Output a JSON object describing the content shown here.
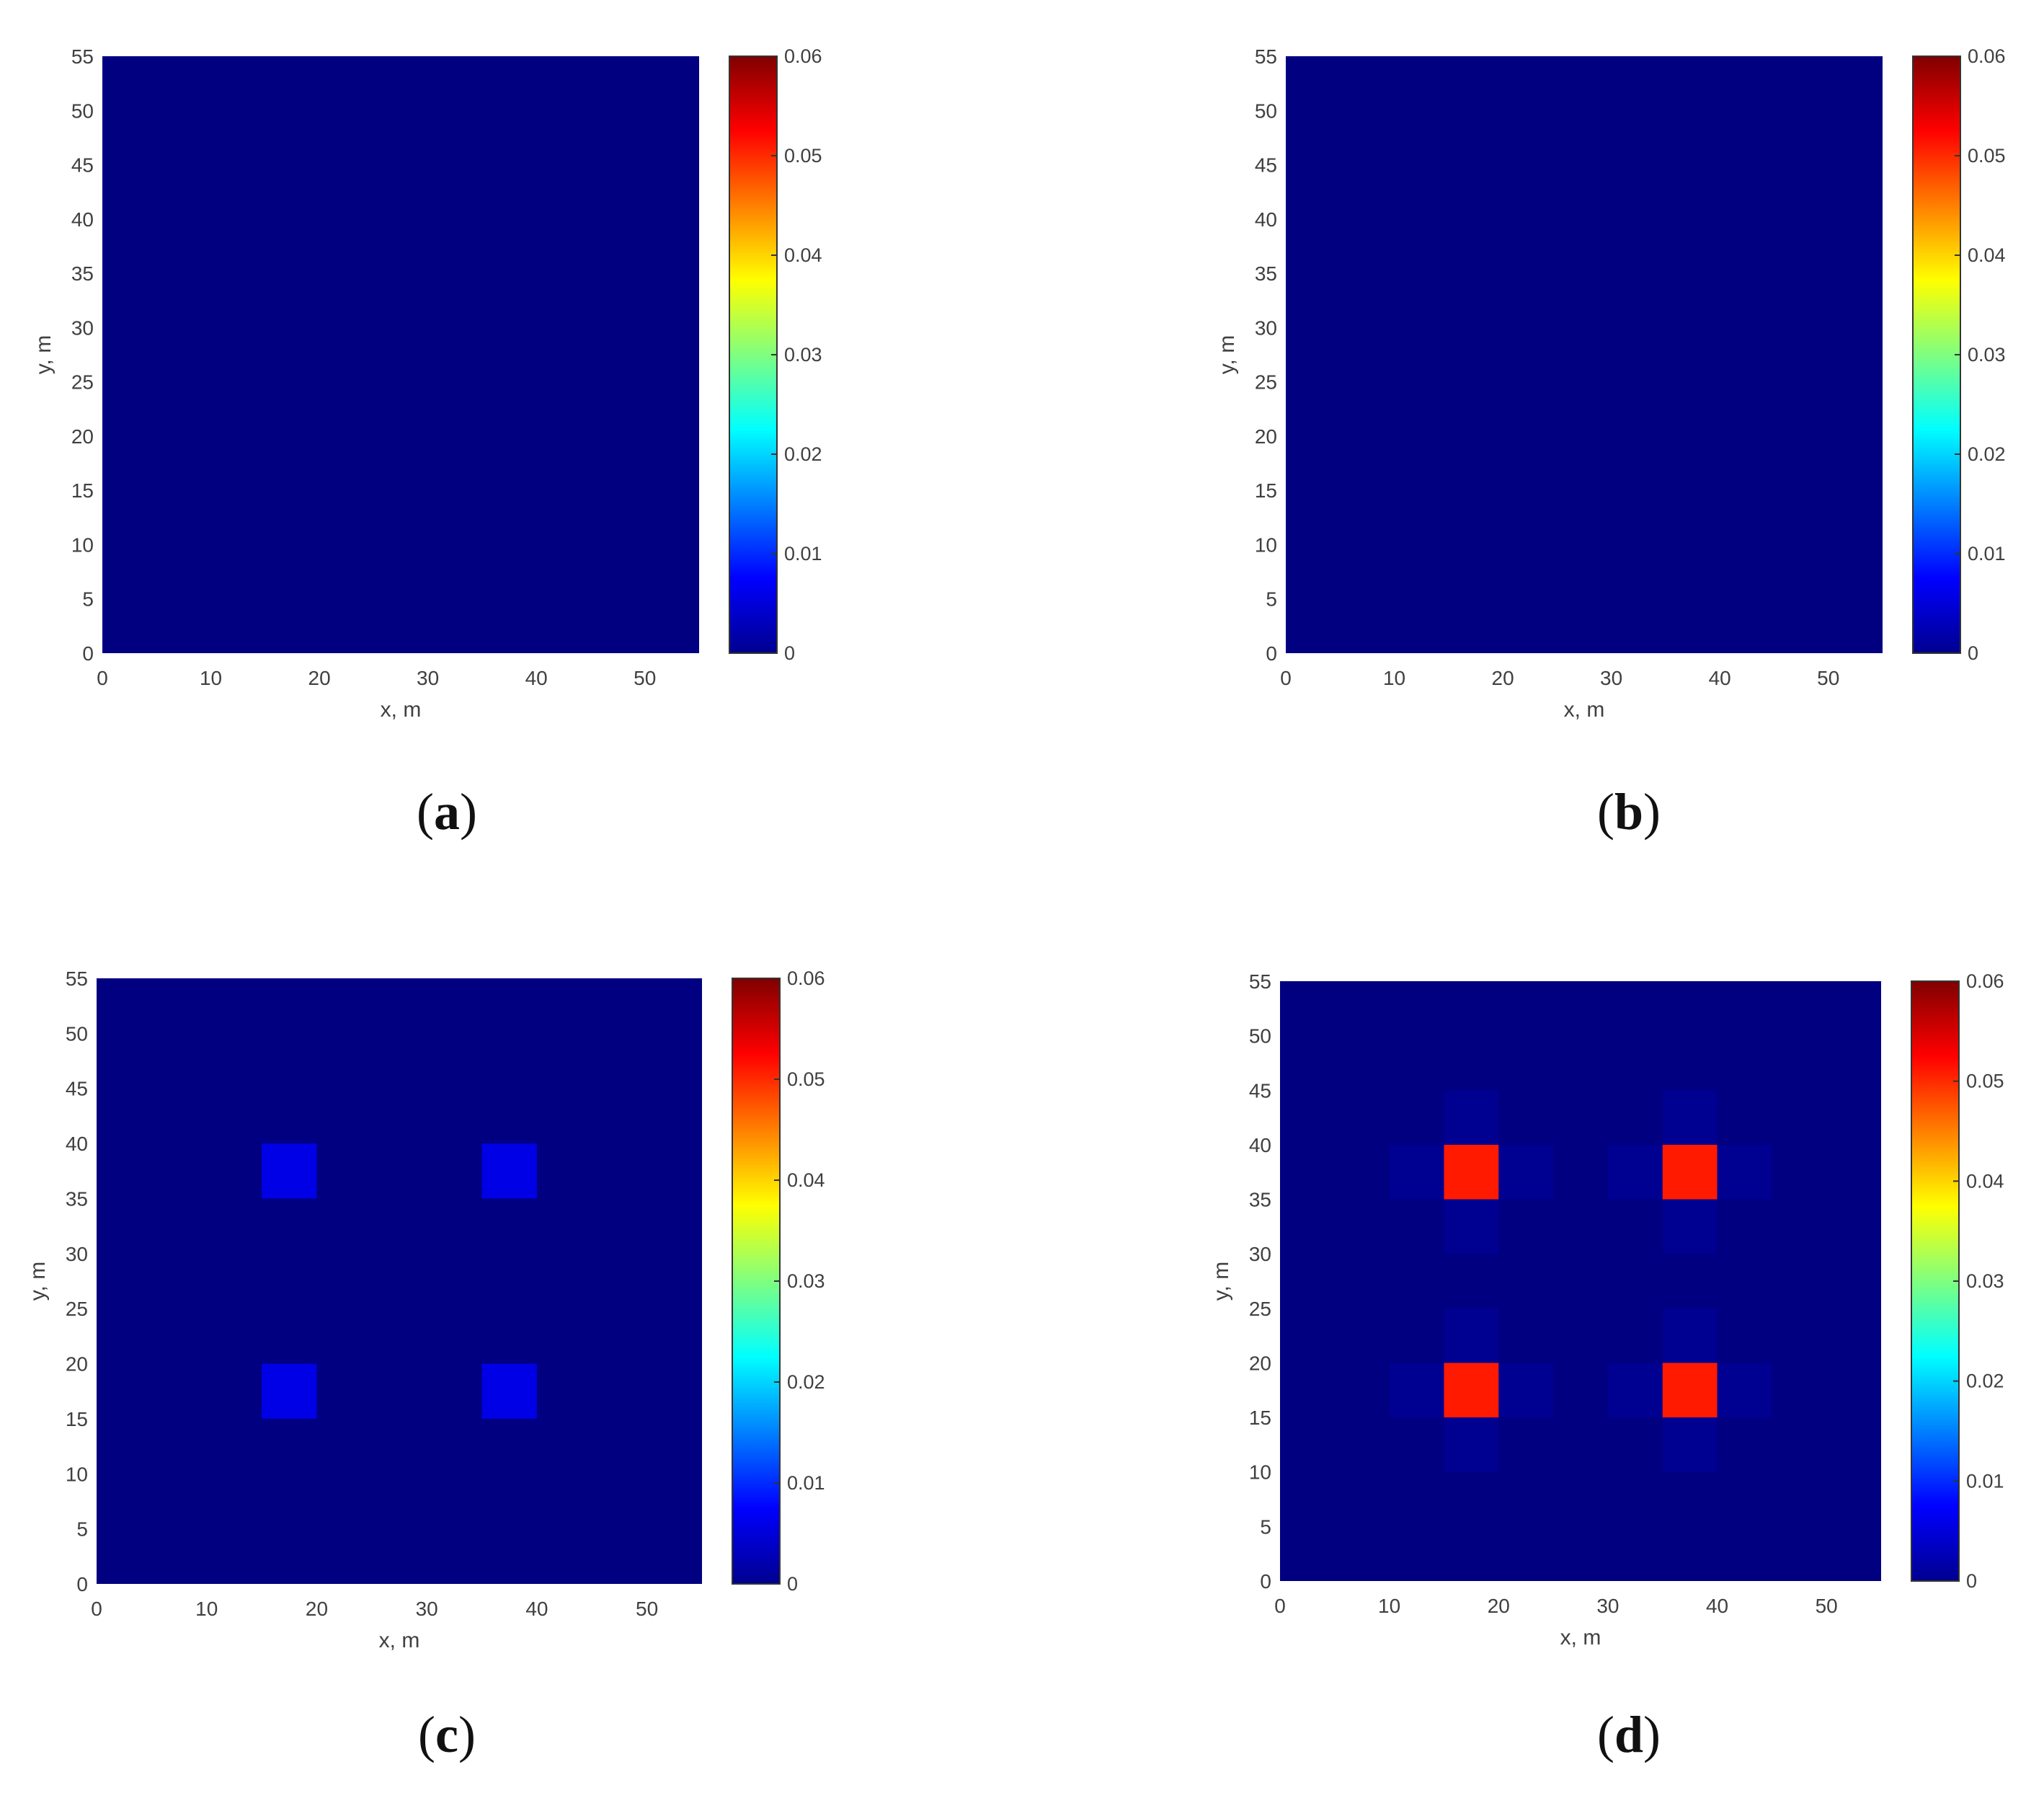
{
  "colors": {
    "text": "#404040",
    "axis": "#333333"
  },
  "colormap_name": "jet",
  "chart_data": [
    {
      "type": "heatmap",
      "panel_label": "a",
      "xlabel": "x, m",
      "ylabel": "y, m",
      "xlim": [
        0,
        55
      ],
      "ylim": [
        0,
        55
      ],
      "xticks": [
        "0",
        "10",
        "20",
        "30",
        "40",
        "50"
      ],
      "yticks": [
        "0",
        "5",
        "10",
        "15",
        "20",
        "25",
        "30",
        "35",
        "40",
        "45",
        "50",
        "55"
      ],
      "colorbar": {
        "range": [
          0,
          0.06
        ],
        "ticks": [
          "0",
          "0.01",
          "0.02",
          "0.03",
          "0.04",
          "0.05",
          "0.06"
        ]
      },
      "background_value": 0,
      "cells": []
    },
    {
      "type": "heatmap",
      "panel_label": "b",
      "xlabel": "x, m",
      "ylabel": "y, m",
      "xlim": [
        0,
        55
      ],
      "ylim": [
        0,
        55
      ],
      "xticks": [
        "0",
        "10",
        "20",
        "30",
        "40",
        "50"
      ],
      "yticks": [
        "0",
        "5",
        "10",
        "15",
        "20",
        "25",
        "30",
        "35",
        "40",
        "45",
        "50",
        "55"
      ],
      "colorbar": {
        "range": [
          0,
          0.06
        ],
        "ticks": [
          "0",
          "0.01",
          "0.02",
          "0.03",
          "0.04",
          "0.05",
          "0.06"
        ]
      },
      "background_value": 0,
      "cells": []
    },
    {
      "type": "heatmap",
      "panel_label": "c",
      "xlabel": "x, m",
      "ylabel": "y, m",
      "xlim": [
        0,
        55
      ],
      "ylim": [
        0,
        55
      ],
      "xticks": [
        "0",
        "10",
        "20",
        "30",
        "40",
        "50"
      ],
      "yticks": [
        "0",
        "5",
        "10",
        "15",
        "20",
        "25",
        "30",
        "35",
        "40",
        "45",
        "50",
        "55"
      ],
      "colorbar": {
        "range": [
          0,
          0.06
        ],
        "ticks": [
          "0",
          "0.01",
          "0.02",
          "0.03",
          "0.04",
          "0.05",
          "0.06"
        ]
      },
      "background_value": 0,
      "cells": [
        {
          "x": [
            15,
            20
          ],
          "y": [
            35,
            40
          ],
          "value": 0.006
        },
        {
          "x": [
            35,
            40
          ],
          "y": [
            35,
            40
          ],
          "value": 0.006
        },
        {
          "x": [
            15,
            20
          ],
          "y": [
            15,
            20
          ],
          "value": 0.006
        },
        {
          "x": [
            35,
            40
          ],
          "y": [
            15,
            20
          ],
          "value": 0.006
        }
      ]
    },
    {
      "type": "heatmap",
      "panel_label": "d",
      "xlabel": "x, m",
      "ylabel": "y, m",
      "xlim": [
        0,
        55
      ],
      "ylim": [
        0,
        55
      ],
      "xticks": [
        "0",
        "10",
        "20",
        "30",
        "40",
        "50"
      ],
      "yticks": [
        "0",
        "5",
        "10",
        "15",
        "20",
        "25",
        "30",
        "35",
        "40",
        "45",
        "50",
        "55"
      ],
      "colorbar": {
        "range": [
          0,
          0.06
        ],
        "ticks": [
          "0",
          "0.01",
          "0.02",
          "0.03",
          "0.04",
          "0.05",
          "0.06"
        ]
      },
      "background_value": 0,
      "cells": [
        {
          "x": [
            15,
            20
          ],
          "y": [
            40,
            45
          ],
          "value": 0.001
        },
        {
          "x": [
            10,
            15
          ],
          "y": [
            35,
            40
          ],
          "value": 0.001
        },
        {
          "x": [
            20,
            25
          ],
          "y": [
            35,
            40
          ],
          "value": 0.001
        },
        {
          "x": [
            15,
            20
          ],
          "y": [
            30,
            35
          ],
          "value": 0.001
        },
        {
          "x": [
            35,
            40
          ],
          "y": [
            40,
            45
          ],
          "value": 0.001
        },
        {
          "x": [
            30,
            35
          ],
          "y": [
            35,
            40
          ],
          "value": 0.001
        },
        {
          "x": [
            40,
            45
          ],
          "y": [
            35,
            40
          ],
          "value": 0.001
        },
        {
          "x": [
            35,
            40
          ],
          "y": [
            30,
            35
          ],
          "value": 0.001
        },
        {
          "x": [
            15,
            20
          ],
          "y": [
            20,
            25
          ],
          "value": 0.001
        },
        {
          "x": [
            10,
            15
          ],
          "y": [
            15,
            20
          ],
          "value": 0.001
        },
        {
          "x": [
            20,
            25
          ],
          "y": [
            15,
            20
          ],
          "value": 0.001
        },
        {
          "x": [
            15,
            20
          ],
          "y": [
            10,
            15
          ],
          "value": 0.001
        },
        {
          "x": [
            35,
            40
          ],
          "y": [
            20,
            25
          ],
          "value": 0.001
        },
        {
          "x": [
            30,
            35
          ],
          "y": [
            15,
            20
          ],
          "value": 0.001
        },
        {
          "x": [
            40,
            45
          ],
          "y": [
            15,
            20
          ],
          "value": 0.001
        },
        {
          "x": [
            35,
            40
          ],
          "y": [
            10,
            15
          ],
          "value": 0.001
        },
        {
          "x": [
            15,
            20
          ],
          "y": [
            35,
            40
          ],
          "value": 0.051
        },
        {
          "x": [
            35,
            40
          ],
          "y": [
            35,
            40
          ],
          "value": 0.051
        },
        {
          "x": [
            15,
            20
          ],
          "y": [
            15,
            20
          ],
          "value": 0.051
        },
        {
          "x": [
            35,
            40
          ],
          "y": [
            15,
            20
          ],
          "value": 0.051
        }
      ]
    }
  ]
}
